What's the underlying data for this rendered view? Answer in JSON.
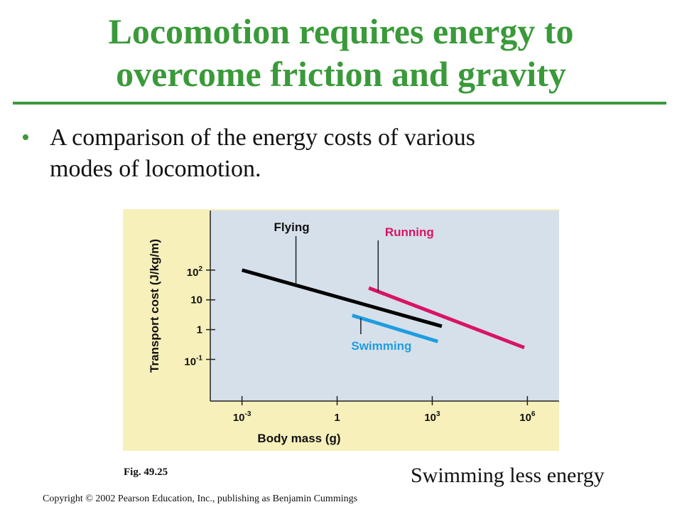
{
  "slide": {
    "title_line1": "Locomotion requires energy to",
    "title_line2": "overcome friction and gravity",
    "bullet_char": "•",
    "bullet_line1": "A comparison of the energy costs of various",
    "bullet_line2": "modes of locomotion.",
    "figure_label": "Fig. 49.25",
    "note": "Swimming less energy",
    "copyright": "Copyright © 2002 Pearson Education, Inc., publishing as Benjamin Cummings"
  },
  "colors": {
    "title": "#3a9a3a",
    "outer_bg": "#f8f0bb",
    "plot_bg": "#d6e0ea",
    "flying": "#000000",
    "running": "#d81466",
    "swimming": "#1e9de0"
  },
  "chart_data": {
    "type": "line",
    "title": "",
    "xlabel": "Body mass (g)",
    "ylabel": "Transport cost (J/kg/m)",
    "x_scale": "log",
    "y_scale": "log",
    "xlim": [
      0.0001,
      10000000
    ],
    "ylim": [
      0.004,
      10000
    ],
    "x_ticks": [
      {
        "value": 0.001,
        "base": "10",
        "exp": "-3"
      },
      {
        "value": 1,
        "base": "1",
        "exp": ""
      },
      {
        "value": 1000,
        "base": "10",
        "exp": "3"
      },
      {
        "value": 1000000,
        "base": "10",
        "exp": "6"
      }
    ],
    "y_ticks": [
      {
        "value": 0.1,
        "base": "10",
        "exp": "-1"
      },
      {
        "value": 1,
        "base": "1",
        "exp": ""
      },
      {
        "value": 10,
        "base": "10",
        "exp": ""
      },
      {
        "value": 100,
        "base": "10",
        "exp": "2"
      }
    ],
    "grid": false,
    "series": [
      {
        "name": "Flying",
        "x": [
          0.001,
          2000
        ],
        "y": [
          100,
          1.3
        ],
        "color": "#000000"
      },
      {
        "name": "Running",
        "x": [
          10,
          800000
        ],
        "y": [
          25,
          0.25
        ],
        "color": "#d81466"
      },
      {
        "name": "Swimming",
        "x": [
          3,
          1500
        ],
        "y": [
          3,
          0.4
        ],
        "color": "#1e9de0"
      }
    ]
  }
}
